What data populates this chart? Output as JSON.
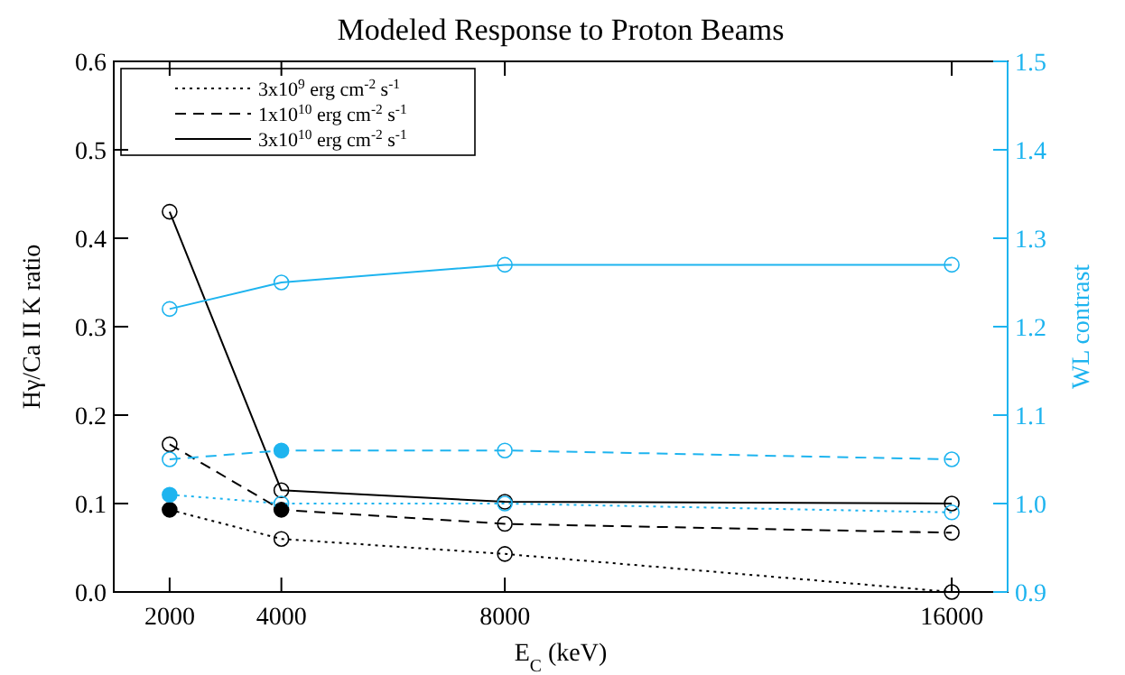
{
  "chart_data": {
    "type": "line",
    "title": "Modeled Response to Proton Beams",
    "xlabel": "E$_{C}$ (keV)",
    "ylabel": "Hγ/Ca II K ratio",
    "y2label": "WL contrast",
    "x": [
      2000,
      4000,
      8000,
      16000
    ],
    "xlim": [
      1000,
      17000
    ],
    "xticks": [
      2000,
      4000,
      8000,
      16000
    ],
    "ylim": [
      0,
      0.6
    ],
    "yticks": [
      "0.0",
      0.1,
      0.2,
      0.3,
      0.4,
      0.5,
      0.6
    ],
    "y2lim": [
      0.9,
      1.5
    ],
    "y2ticks": [
      0.9,
      "1.0",
      1.1,
      1.2,
      1.3,
      1.4,
      1.5
    ],
    "marker": "circle",
    "legend": "top left",
    "grid": false,
    "series": [
      {
        "name": "3x10$^{9}$ erg cm$^{-2}$ s$^{-1}$",
        "color": "#000000",
        "line_style": "dotted",
        "values": [
          0.093,
          0.06,
          0.043,
          0.0
        ]
      },
      {
        "name": "1x10$^{10}$ erg cm$^{-2}$ s$^{-1}$",
        "color": "#000000",
        "line_style": "dashed",
        "values": [
          0.167,
          0.093,
          0.077,
          0.067
        ]
      },
      {
        "name": "3x10$^{10}$ erg cm$^{-2}$ s$^{-1}$",
        "color": "#000000",
        "line_style": "solid",
        "values": [
          0.43,
          0.115,
          0.102,
          0.1
        ]
      },
      {
        "color": "#1eb4ef",
        "line_style": "dotted",
        "axis": "y2",
        "values": [
          1.01,
          1.0,
          1.0,
          0.99
        ]
      },
      {
        "color": "#1eb4ef",
        "line_style": "dashed",
        "axis": "y2",
        "values": [
          1.05,
          1.06,
          1.06,
          1.05
        ]
      },
      {
        "color": "#1eb4ef",
        "line_style": "solid",
        "axis": "y2",
        "values": [
          1.22,
          1.25,
          1.27,
          1.27
        ]
      },
      {
        "type": "scatter",
        "color": "#000000",
        "values": [
          0.093,
          0.093,
          null,
          null
        ]
      },
      {
        "type": "scatter",
        "color": "#1eb4ef",
        "axis": "y2",
        "values": [
          1.01,
          1.06,
          null,
          null
        ]
      }
    ]
  }
}
